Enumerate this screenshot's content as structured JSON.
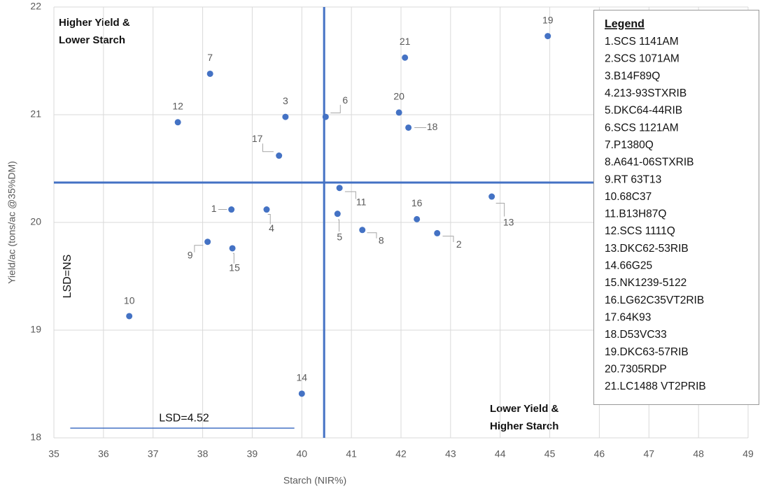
{
  "chart_data": {
    "type": "scatter",
    "x_label": "Starch (NIR%)",
    "y_label": "Yield/ac (tons/ac @35%DM)",
    "xlim": [
      35,
      49
    ],
    "ylim": [
      18,
      22
    ],
    "xticks": [
      35,
      36,
      37,
      38,
      39,
      40,
      41,
      42,
      43,
      44,
      45,
      46,
      47,
      48,
      49
    ],
    "yticks": [
      18,
      19,
      20,
      21,
      22
    ],
    "grid": true,
    "color": "#4472c4",
    "point_labels": [
      "1",
      "2",
      "3",
      "4",
      "5",
      "6",
      "7",
      "8",
      "9",
      "10",
      "11",
      "12",
      "13",
      "14",
      "15",
      "16",
      "17",
      "18",
      "19",
      "20",
      "21"
    ],
    "x": [
      38.58,
      42.73,
      39.67,
      39.29,
      40.72,
      40.48,
      38.15,
      41.22,
      38.1,
      36.52,
      40.76,
      37.5,
      43.83,
      40.0,
      38.6,
      42.32,
      39.54,
      42.15,
      44.96,
      41.96,
      42.08
    ],
    "values": [
      20.12,
      19.9,
      20.98,
      20.12,
      20.08,
      20.98,
      21.38,
      19.93,
      19.82,
      19.13,
      20.32,
      20.93,
      20.24,
      18.41,
      19.76,
      20.03,
      20.62,
      20.88,
      21.73,
      21.02,
      21.53
    ],
    "reference_lines": {
      "x": 40.45,
      "y": 20.37
    },
    "lsd_line": {
      "label": "LSD=4.52",
      "x": [
        35.33,
        39.85
      ],
      "y": 18.09
    },
    "lsd_y_label": "LSD=NS",
    "quadrant_labels": {
      "top_left": [
        "Higher Yield &",
        "Lower Starch"
      ],
      "bottom_right": [
        "Lower Yield &",
        "Higher Starch"
      ]
    },
    "legend": {
      "title": "Legend",
      "items": [
        "1.SCS 1141AM",
        "2.SCS 1071AM",
        "3.B14F89Q",
        "4.213-93STXRIB",
        "5.DKC64-44RIB",
        "6.SCS 1121AM",
        "7.P1380Q",
        "8.A641-06STXRIB",
        "9.RT 63T13",
        "10.68C37",
        "11.B13H87Q",
        "12.SCS 1111Q",
        "13.DKC62-53RIB",
        "14.66G25",
        "15.NK1239-5122",
        "16.LG62C35VT2RIB",
        "17.64K93",
        "18.D53VC33",
        "19.DKC63-57RIB",
        "20.7305RDP",
        "21.LC1488 VT2PRIB"
      ]
    }
  }
}
